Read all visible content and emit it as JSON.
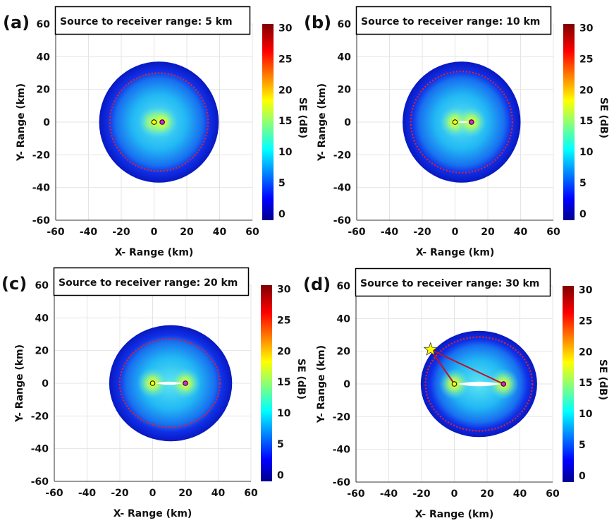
{
  "chart_data": [
    {
      "type": "heatmap",
      "panel_label": "(a)",
      "title": "Source to receiver range: 5 km",
      "xlabel": "X- Range (km)",
      "ylabel": "Y- Range (km)",
      "colorbar_label": "SE (dB)",
      "xlim": [
        -60,
        60
      ],
      "ylim": [
        -60,
        60
      ],
      "xticks": [
        -60,
        -40,
        -20,
        0,
        20,
        40,
        60
      ],
      "yticks": [
        -60,
        -40,
        -20,
        0,
        20,
        40,
        60
      ],
      "clim": [
        -1,
        30.6
      ],
      "cticks": [
        0,
        5,
        10,
        15,
        20,
        25,
        30
      ],
      "colormap": "jet",
      "grid": true,
      "source": [
        0,
        0
      ],
      "receiver": [
        5,
        0
      ],
      "coverage_boundary": {
        "center": [
          3,
          0
        ],
        "rx": 36.5,
        "ry": 37
      },
      "red_dotted_contour": {
        "center": [
          3,
          0
        ],
        "rx": 30,
        "ry": 30
      },
      "blind_zone": false
    },
    {
      "type": "heatmap",
      "panel_label": "(b)",
      "title": "Source to receiver range: 10 km",
      "xlabel": "X- Range (km)",
      "ylabel": "Y- Range (km)",
      "colorbar_label": "SE (dB)",
      "xlim": [
        -60,
        60
      ],
      "ylim": [
        -60,
        60
      ],
      "xticks": [
        -60,
        -40,
        -20,
        0,
        20,
        40,
        60
      ],
      "yticks": [
        -60,
        -40,
        -20,
        0,
        20,
        40,
        60
      ],
      "clim": [
        -1,
        30.6
      ],
      "cticks": [
        0,
        5,
        10,
        15,
        20,
        25,
        30
      ],
      "colormap": "jet",
      "grid": true,
      "source": [
        0,
        0
      ],
      "receiver": [
        10,
        0
      ],
      "coverage_boundary": {
        "center": [
          4,
          0
        ],
        "rx": 36,
        "ry": 37
      },
      "red_dotted_contour": {
        "center": [
          4,
          0
        ],
        "rx": 31,
        "ry": 31
      },
      "blind_zone": true
    },
    {
      "type": "heatmap",
      "panel_label": "(c)",
      "title": "Source to receiver range: 20 km",
      "xlabel": "X- Range (km)",
      "ylabel": "Y- Range (km)",
      "colorbar_label": "SE (dB)",
      "xlim": [
        -60,
        60
      ],
      "ylim": [
        -60,
        60
      ],
      "xticks": [
        -60,
        -40,
        -20,
        0,
        20,
        40,
        60
      ],
      "yticks": [
        -60,
        -40,
        -20,
        0,
        20,
        40,
        60
      ],
      "clim": [
        -1,
        30.6
      ],
      "cticks": [
        0,
        5,
        10,
        15,
        20,
        25,
        30
      ],
      "colormap": "jet",
      "grid": true,
      "source": [
        0,
        0
      ],
      "receiver": [
        20,
        0
      ],
      "coverage_boundary": {
        "center": [
          11,
          0
        ],
        "rx": 37.5,
        "ry": 35.5
      },
      "red_dotted_contour": {
        "center": [
          10.5,
          0
        ],
        "rx": 30.6,
        "ry": 27
      },
      "blind_zone": true
    },
    {
      "type": "heatmap",
      "panel_label": "(d)",
      "title": "Source to receiver range: 30 km",
      "xlabel": "X- Range (km)",
      "ylabel": "Y- Range (km)",
      "colorbar_label": "SE (dB)",
      "xlim": [
        -60,
        60
      ],
      "ylim": [
        -60,
        60
      ],
      "xticks": [
        -60,
        -40,
        -20,
        0,
        20,
        40,
        60
      ],
      "yticks": [
        -60,
        -40,
        -20,
        0,
        20,
        40,
        60
      ],
      "clim": [
        -1,
        30.6
      ],
      "cticks": [
        0,
        5,
        10,
        15,
        20,
        25,
        30
      ],
      "colormap": "jet",
      "grid": true,
      "source": [
        0,
        0
      ],
      "receiver": [
        30,
        0
      ],
      "coverage_boundary": {
        "center": [
          15,
          0
        ],
        "rx": 35.5,
        "ry": 32.5
      },
      "red_dotted_contour": {
        "center": [
          15,
          0
        ],
        "rx": 32.6,
        "ry": 28.7
      },
      "blind_zone": true,
      "target": [
        -14.5,
        21
      ]
    }
  ],
  "colors": {
    "contour": "#e8202a",
    "source_fill": "#ffff00",
    "receiver_fill": "#e020e0",
    "target_star": "#ffff00",
    "path_line": "#c0102a"
  }
}
